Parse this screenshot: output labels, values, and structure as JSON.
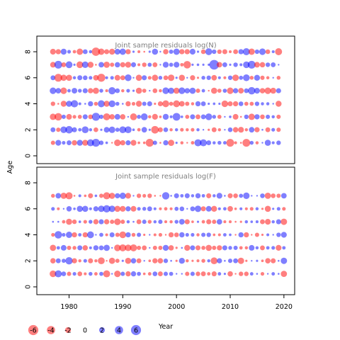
{
  "chart_data": {
    "type": "scatter",
    "xlabel": "Year",
    "ylabel": "Age",
    "xlim": [
      1974,
      2022
    ],
    "x_ticks": [
      1980,
      1990,
      2000,
      2010,
      2020
    ],
    "y_ticks": [
      0,
      2,
      4,
      6,
      8
    ],
    "colors": {
      "positive": "#0000ff",
      "negative": "#ff0000"
    },
    "panels": [
      {
        "title": "Joint sample residuals log(N)",
        "ylim": [
          -0.6,
          9.2
        ],
        "ages": [
          1,
          2,
          3,
          4,
          5,
          6,
          7,
          8
        ],
        "years": [
          1977,
          2019
        ],
        "values": [
          [
            -1.1,
            1.4,
            -2.4,
            -1.2,
            2.5,
            1.4,
            -1.9,
            -2.0
          ],
          [
            2.0,
            -1.1,
            -3.3,
            -0.2,
            1.8,
            -3.6,
            3.6,
            -1.6
          ],
          [
            0.8,
            2.6,
            1.1,
            -2.1,
            -2.5,
            -2.3,
            -1.4,
            2.1
          ],
          [
            1.4,
            3.3,
            -1.9,
            2.2,
            0.7,
            -2.2,
            2.8,
            0.8
          ],
          [
            -1.7,
            1.5,
            -0.8,
            3.1,
            1.9,
            0.6,
            0.3,
            -0.7
          ],
          [
            2.1,
            0.7,
            -1.0,
            0.5,
            0.9,
            1.5,
            -2.7,
            -2.4
          ],
          [
            -2.1,
            2.8,
            1.5,
            0.2,
            1.5,
            1.3,
            2.5,
            1.4
          ],
          [
            2.9,
            0.6,
            -1.3,
            1.6,
            -1.6,
            0.8,
            -2.2,
            0.6
          ],
          [
            3.7,
            -1.3,
            3.8,
            -0.9,
            -2.3,
            -1.8,
            -0.2,
            -4.1
          ],
          [
            1.2,
            0.3,
            1.1,
            2.9,
            0.9,
            -3.8,
            1.8,
            -2.4
          ],
          [
            0.4,
            1.9,
            -2.9,
            -2.1,
            -0.5,
            0.5,
            -2.3,
            -1.5
          ],
          [
            -0.1,
            2.5,
            -1.7,
            2.7,
            3.1,
            0.8,
            -1.1,
            -2.1
          ],
          [
            -2.6,
            1.0,
            1.9,
            0.9,
            1.3,
            -1.9,
            1.7,
            2.0
          ],
          [
            -1.6,
            2.8,
            -1.7,
            0.2,
            -0.6,
            -1.4,
            -1.6,
            2.4
          ],
          [
            1.5,
            2.8,
            -0.0,
            -1.6,
            0.8,
            2.7,
            -2.1,
            -1.6
          ],
          [
            -2.0,
            0.4,
            -2.8,
            -0.8,
            0.3,
            -0.0,
            1.5,
            0.3
          ],
          [
            -0.4,
            -0.7,
            1.0,
            -2.1,
            -2.2,
            -2.3,
            -0.5,
            -0.5
          ],
          [
            -0.4,
            1.8,
            2.8,
            1.1,
            -1.0,
            1.5,
            -1.2,
            -0.2
          ],
          [
            -3.7,
            0.3,
            -0.6,
            1.5,
            0.1,
            -0.8,
            1.0,
            0.3
          ],
          [
            1.1,
            -3.4,
            -2.0,
            -0.3,
            -1.3,
            -2.3,
            -1.4,
            2.2
          ],
          [
            -0.2,
            -1.4,
            -0.4,
            -1.5,
            -0.6,
            0.9,
            -0.0,
            0.1
          ],
          [
            1.6,
            1.3,
            2.1,
            -2.8,
            2.6,
            -1.3,
            2.1,
            -1.7
          ],
          [
            -2.3,
            -0.6,
            0.5,
            -1.0,
            2.3,
            -2.5,
            1.0,
            1.1
          ],
          [
            0.3,
            0.6,
            3.5,
            -2.8,
            -2.2,
            0.3,
            2.0,
            2.4
          ],
          [
            -0.6,
            -0.8,
            0.4,
            -1.8,
            2.6,
            -2.2,
            -0.7,
            -1.6
          ],
          [
            -0.1,
            -0.6,
            -1.0,
            -1.1,
            1.7,
            -0.0,
            -3.3,
            -1.6
          ],
          [
            -0.7,
            -0.8,
            1.5,
            -0.6,
            2.3,
            -1.6,
            0.3,
            2.0
          ],
          [
            3.0,
            0.6,
            -1.4,
            1.6,
            -1.1,
            -0.3,
            0.4,
            0.3
          ],
          [
            2.9,
            0.1,
            1.4,
            1.4,
            0.7,
            0.9,
            0.3,
            -1.3
          ],
          [
            1.4,
            -0.3,
            2.7,
            0.3,
            -0.1,
            1.2,
            0.3,
            2.8
          ],
          [
            0.6,
            -1.4,
            0.9,
            0.4,
            -2.2,
            -1.8,
            5.5,
            1.2
          ],
          [
            0.9,
            -0.6,
            -1.0,
            0.3,
            -1.0,
            0.5,
            -1.8,
            -1.2
          ],
          [
            0.7,
            0.1,
            0.0,
            -2.6,
            1.0,
            -0.5,
            1.4,
            -1.5
          ],
          [
            -3.6,
            1.3,
            0.4,
            -1.5,
            -2.5,
            1.2,
            0.3,
            -0.5
          ],
          [
            -0.5,
            -1.7,
            -1.9,
            -1.6,
            1.6,
            -2.5,
            1.2,
            -1.4
          ],
          [
            -0.2,
            -2.0,
            -0.2,
            1.3,
            -1.9,
            1.0,
            0.5,
            1.6
          ],
          [
            -3.6,
            -0.6,
            1.2,
            -1.0,
            1.3,
            2.7,
            2.6,
            3.0
          ],
          [
            0.9,
            1.8,
            -2.4,
            -1.0,
            3.3,
            -0.9,
            3.6,
            -2.4
          ],
          [
            -0.6,
            -1.6,
            1.6,
            1.2,
            2.0,
            2.1,
            -1.9,
            1.2
          ],
          [
            -0.0,
            0.2,
            -1.3,
            0.6,
            -1.7,
            -1.1,
            -1.7,
            2.5
          ],
          [
            2.2,
            -1.4,
            1.1,
            0.6,
            -2.5,
            -0.6,
            1.2,
            -1.3
          ],
          [
            0.5,
            0.8,
            0.6,
            0.0,
            -2.1,
            0.1,
            1.4,
            0.5
          ],
          [
            1.2,
            -1.1,
            -1.1,
            -2.1,
            1.5,
            -0.9,
            0.1,
            -2.9
          ]
        ]
      },
      {
        "title": "Joint sample residuals log(F)",
        "ylim": [
          -0.6,
          9.2
        ],
        "ages": [
          1,
          2,
          3,
          4,
          5,
          6,
          7
        ],
        "years": [
          1977,
          2020
        ],
        "values": [
          [
            -2.6,
            -1.7,
            -2.3,
            -0.8,
            0.2,
            0.8,
            -0.9
          ],
          [
            2.9,
            1.4,
            0.7,
            3.3,
            0.2,
            -0.5,
            1.8
          ],
          [
            1.3,
            1.0,
            1.9,
            0.8,
            -0.7,
            0.1,
            -2.3
          ],
          [
            -1.1,
            3.2,
            -1.1,
            2.4,
            -2.2,
            1.7,
            -3.0
          ],
          [
            0.8,
            -1.6,
            -0.9,
            -1.6,
            -1.2,
            0.4,
            -0.2
          ],
          [
            -1.3,
            -0.6,
            1.5,
            0.7,
            0.4,
            2.2,
            0.5
          ],
          [
            -0.5,
            0.8,
            -1.7,
            -1.6,
            -0.8,
            2.2,
            -0.4
          ],
          [
            0.9,
            -1.5,
            0.5,
            2.8,
            0.9,
            0.5,
            -1.5
          ],
          [
            -0.7,
            -0.6,
            1.6,
            0.1,
            -1.6,
            1.6,
            0.4
          ],
          [
            1.0,
            -2.8,
            1.4,
            1.0,
            1.5,
            2.4,
            -1.1
          ],
          [
            -2.9,
            -0.1,
            2.3,
            -0.5,
            -1.6,
            3.2,
            -3.0
          ],
          [
            0.1,
            -2.3,
            0.1,
            1.5,
            -1.1,
            2.5,
            -2.2
          ],
          [
            -2.5,
            -1.0,
            -2.6,
            -1.1,
            -2.5,
            -2.2,
            1.6
          ],
          [
            1.1,
            0.3,
            -2.9,
            -2.7,
            -1.1,
            -2.0,
            2.4
          ],
          [
            -1.6,
            -2.2,
            -2.5,
            1.6,
            0.6,
            1.6,
            -2.0
          ],
          [
            1.6,
            1.7,
            -2.9,
            -0.9,
            0.2,
            -1.9,
            0.0
          ],
          [
            1.0,
            -1.4,
            -1.1,
            1.1,
            -1.4,
            0.8,
            -1.2
          ],
          [
            -0.4,
            -0.0,
            -1.4,
            -0.3,
            1.1,
            0.9,
            -0.8
          ],
          [
            -0.7,
            -0.4,
            0.1,
            -0.0,
            -0.9,
            1.4,
            -1.2
          ],
          [
            1.3,
            -1.6,
            -1.1,
            -0.5,
            0.6,
            0.5,
            -0.2
          ],
          [
            -1.4,
            -1.7,
            -1.1,
            -0.8,
            1.1,
            -0.5,
            -0.1
          ],
          [
            1.1,
            1.2,
            2.1,
            -0.1,
            -0.5,
            -0.7,
            3.2
          ],
          [
            1.0,
            0.2,
            -1.7,
            -1.6,
            -0.6,
            -0.5,
            0.2
          ],
          [
            0.1,
            -0.3,
            -0.3,
            -1.3,
            0.9,
            1.0,
            1.5
          ],
          [
            0.1,
            2.1,
            0.2,
            1.7,
            1.9,
            1.3,
            0.7
          ],
          [
            -1.1,
            -0.6,
            -2.1,
            0.8,
            -1.5,
            0.1,
            1.5
          ],
          [
            1.1,
            -0.3,
            1.5,
            0.8,
            -0.4,
            1.4,
            0.6
          ],
          [
            -1.2,
            -0.5,
            -1.5,
            -0.6,
            0.3,
            2.5,
            1.6
          ],
          [
            -1.4,
            -0.9,
            -1.0,
            1.1,
            -0.7,
            -1.5,
            0.7
          ],
          [
            -0.7,
            0.6,
            -2.2,
            1.2,
            -1.5,
            1.9,
            -1.5
          ],
          [
            -1.5,
            -2.8,
            -1.1,
            -0.4,
            -1.1,
            -2.1,
            0.6
          ],
          [
            0.7,
            1.6,
            -1.6,
            -0.5,
            1.8,
            0.5,
            2.0
          ],
          [
            0.3,
            0.2,
            1.5,
            0.7,
            -0.5,
            0.7,
            0.2
          ],
          [
            -1.7,
            1.1,
            0.9,
            0.4,
            -0.5,
            -1.8,
            -1.5
          ],
          [
            -0.1,
            1.4,
            1.1,
            -0.1,
            -0.2,
            -0.4,
            -1.3
          ],
          [
            -1.2,
            -2.4,
            -0.7,
            1.6,
            -0.3,
            0.5,
            1.0
          ],
          [
            -1.2,
            -0.3,
            -0.6,
            -1.6,
            0.6,
            -0.5,
            2.5
          ],
          [
            0.7,
            0.1,
            1.9,
            -0.1,
            0.4,
            -0.8,
            0.1
          ],
          [
            0.2,
            0.3,
            0.6,
            -1.1,
            0.5,
            0.6,
            0.1
          ],
          [
            -0.8,
            -0.4,
            -1.4,
            -0.3,
            -1.4,
            -0.3,
            1.3
          ],
          [
            0.1,
            -1.7,
            0.7,
            0.5,
            -2.0,
            -2.2,
            -2.3
          ],
          [
            0.7,
            -1.5,
            0.8,
            0.1,
            0.6,
            0.3,
            -1.3
          ],
          [
            0.2,
            0.2,
            -2.0,
            1.2,
            1.5,
            0.8,
            -1.1
          ],
          [
            -2.3,
            2.4,
            0.7,
            2.0,
            -2.4,
            -0.8,
            1.8
          ]
        ]
      }
    ],
    "legend": {
      "placement": "bottom-left",
      "entries": [
        "-6",
        "-4",
        "-2",
        "0",
        "2",
        "4",
        "6"
      ],
      "values": [
        -6,
        -4,
        -2,
        0,
        2,
        4,
        6
      ]
    }
  }
}
